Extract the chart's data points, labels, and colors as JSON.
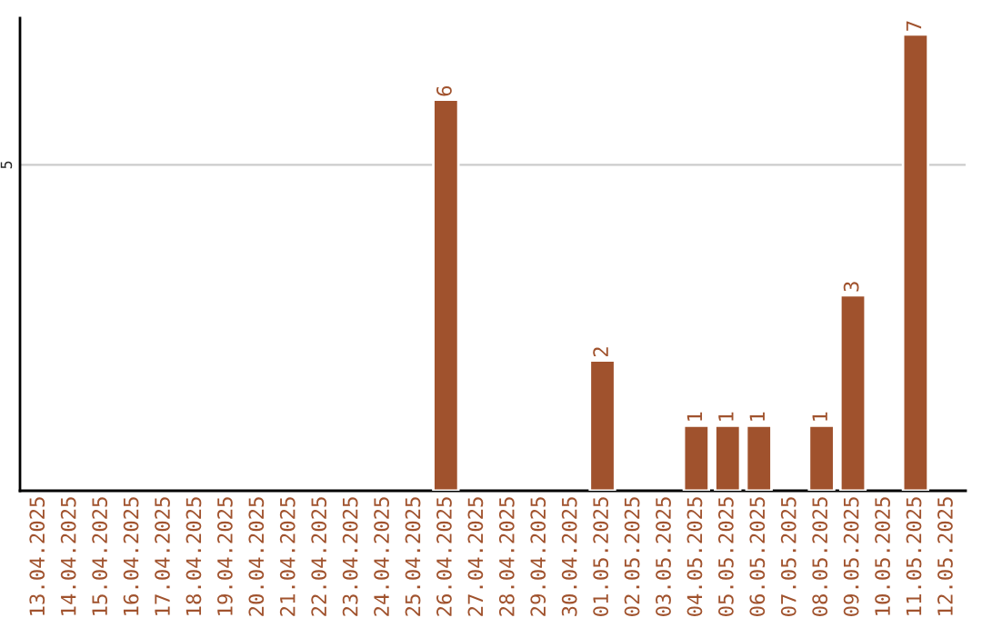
{
  "chart_data": {
    "type": "bar",
    "categories": [
      "13.04.2025",
      "14.04.2025",
      "15.04.2025",
      "16.04.2025",
      "17.04.2025",
      "18.04.2025",
      "19.04.2025",
      "20.04.2025",
      "21.04.2025",
      "22.04.2025",
      "23.04.2025",
      "24.04.2025",
      "25.04.2025",
      "26.04.2025",
      "27.04.2025",
      "28.04.2025",
      "29.04.2025",
      "30.04.2025",
      "01.05.2025",
      "02.05.2025",
      "03.05.2025",
      "04.05.2025",
      "05.05.2025",
      "06.05.2025",
      "07.05.2025",
      "08.05.2025",
      "09.05.2025",
      "10.05.2025",
      "11.05.2025",
      "12.05.2025"
    ],
    "values": [
      null,
      null,
      null,
      null,
      null,
      null,
      null,
      null,
      null,
      null,
      null,
      null,
      null,
      6,
      null,
      null,
      null,
      null,
      2,
      null,
      null,
      1,
      1,
      1,
      null,
      1,
      3,
      null,
      7,
      null
    ],
    "color": "#a0522d",
    "ylim": [
      0,
      7.25
    ],
    "yticks": [
      5
    ],
    "grid": "y",
    "data_labels": true
  }
}
